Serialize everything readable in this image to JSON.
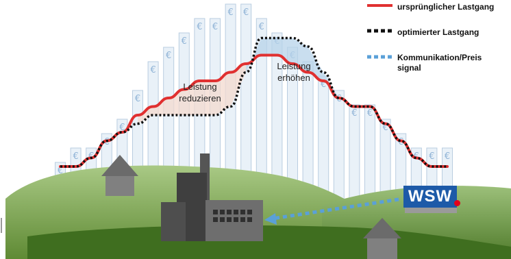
{
  "legend": {
    "items": [
      {
        "label": "ursprünglicher Lastgang",
        "color": "#e03030",
        "style": "solid"
      },
      {
        "label": "optimierter Lastgang",
        "color": "#111111",
        "style": "dotted"
      },
      {
        "label": "Kommunikation/Preis signal",
        "color": "#5aa0d8",
        "style": "dotted"
      }
    ]
  },
  "regions": {
    "reduce_label": "Leistung reduzieren",
    "increase_label": "Leistung erhöhen"
  },
  "price_symbol": "€",
  "logo_text": "WSW",
  "colors": {
    "original_line": "#e03030",
    "optimized_line": "#111111",
    "signal_arrow": "#5aa0d8",
    "reduce_fill": "#f3d9cf",
    "increase_fill": "#b7d3ea",
    "price_bar_fill": "#e9f1f8",
    "price_bar_border": "#b9cde0",
    "hill_green": "#7fa84c",
    "logo_blue": "#1d5aa8",
    "logo_red": "#e3001b"
  },
  "chart_data": {
    "type": "line",
    "x": [
      0,
      1,
      2,
      3,
      4,
      5,
      6,
      7,
      8,
      9,
      10,
      11,
      12,
      13,
      14,
      15,
      16,
      17,
      18,
      19,
      20,
      21,
      22,
      23,
      24,
      25
    ],
    "series": [
      {
        "name": "ursprünglicher Lastgang",
        "values": [
          2,
          2,
          3,
          5,
          6,
          8,
          9,
          10,
          11,
          12,
          12,
          13,
          14,
          15,
          15,
          14,
          13,
          12,
          10,
          9,
          9,
          7,
          5,
          3,
          2,
          2
        ]
      },
      {
        "name": "optimierter Lastgang",
        "values": [
          2,
          2,
          3,
          5,
          6,
          7,
          8,
          8,
          8,
          8,
          8,
          9,
          13,
          17,
          17,
          17,
          16,
          13,
          10,
          9,
          9,
          7,
          5,
          3,
          2,
          2
        ]
      }
    ],
    "price_levels": [
      3,
      4,
      4,
      5,
      6,
      8,
      10,
      11,
      12,
      13,
      13,
      14,
      14,
      13,
      12,
      11,
      10,
      9,
      8,
      7,
      7,
      6,
      5,
      4,
      4,
      4
    ]
  }
}
